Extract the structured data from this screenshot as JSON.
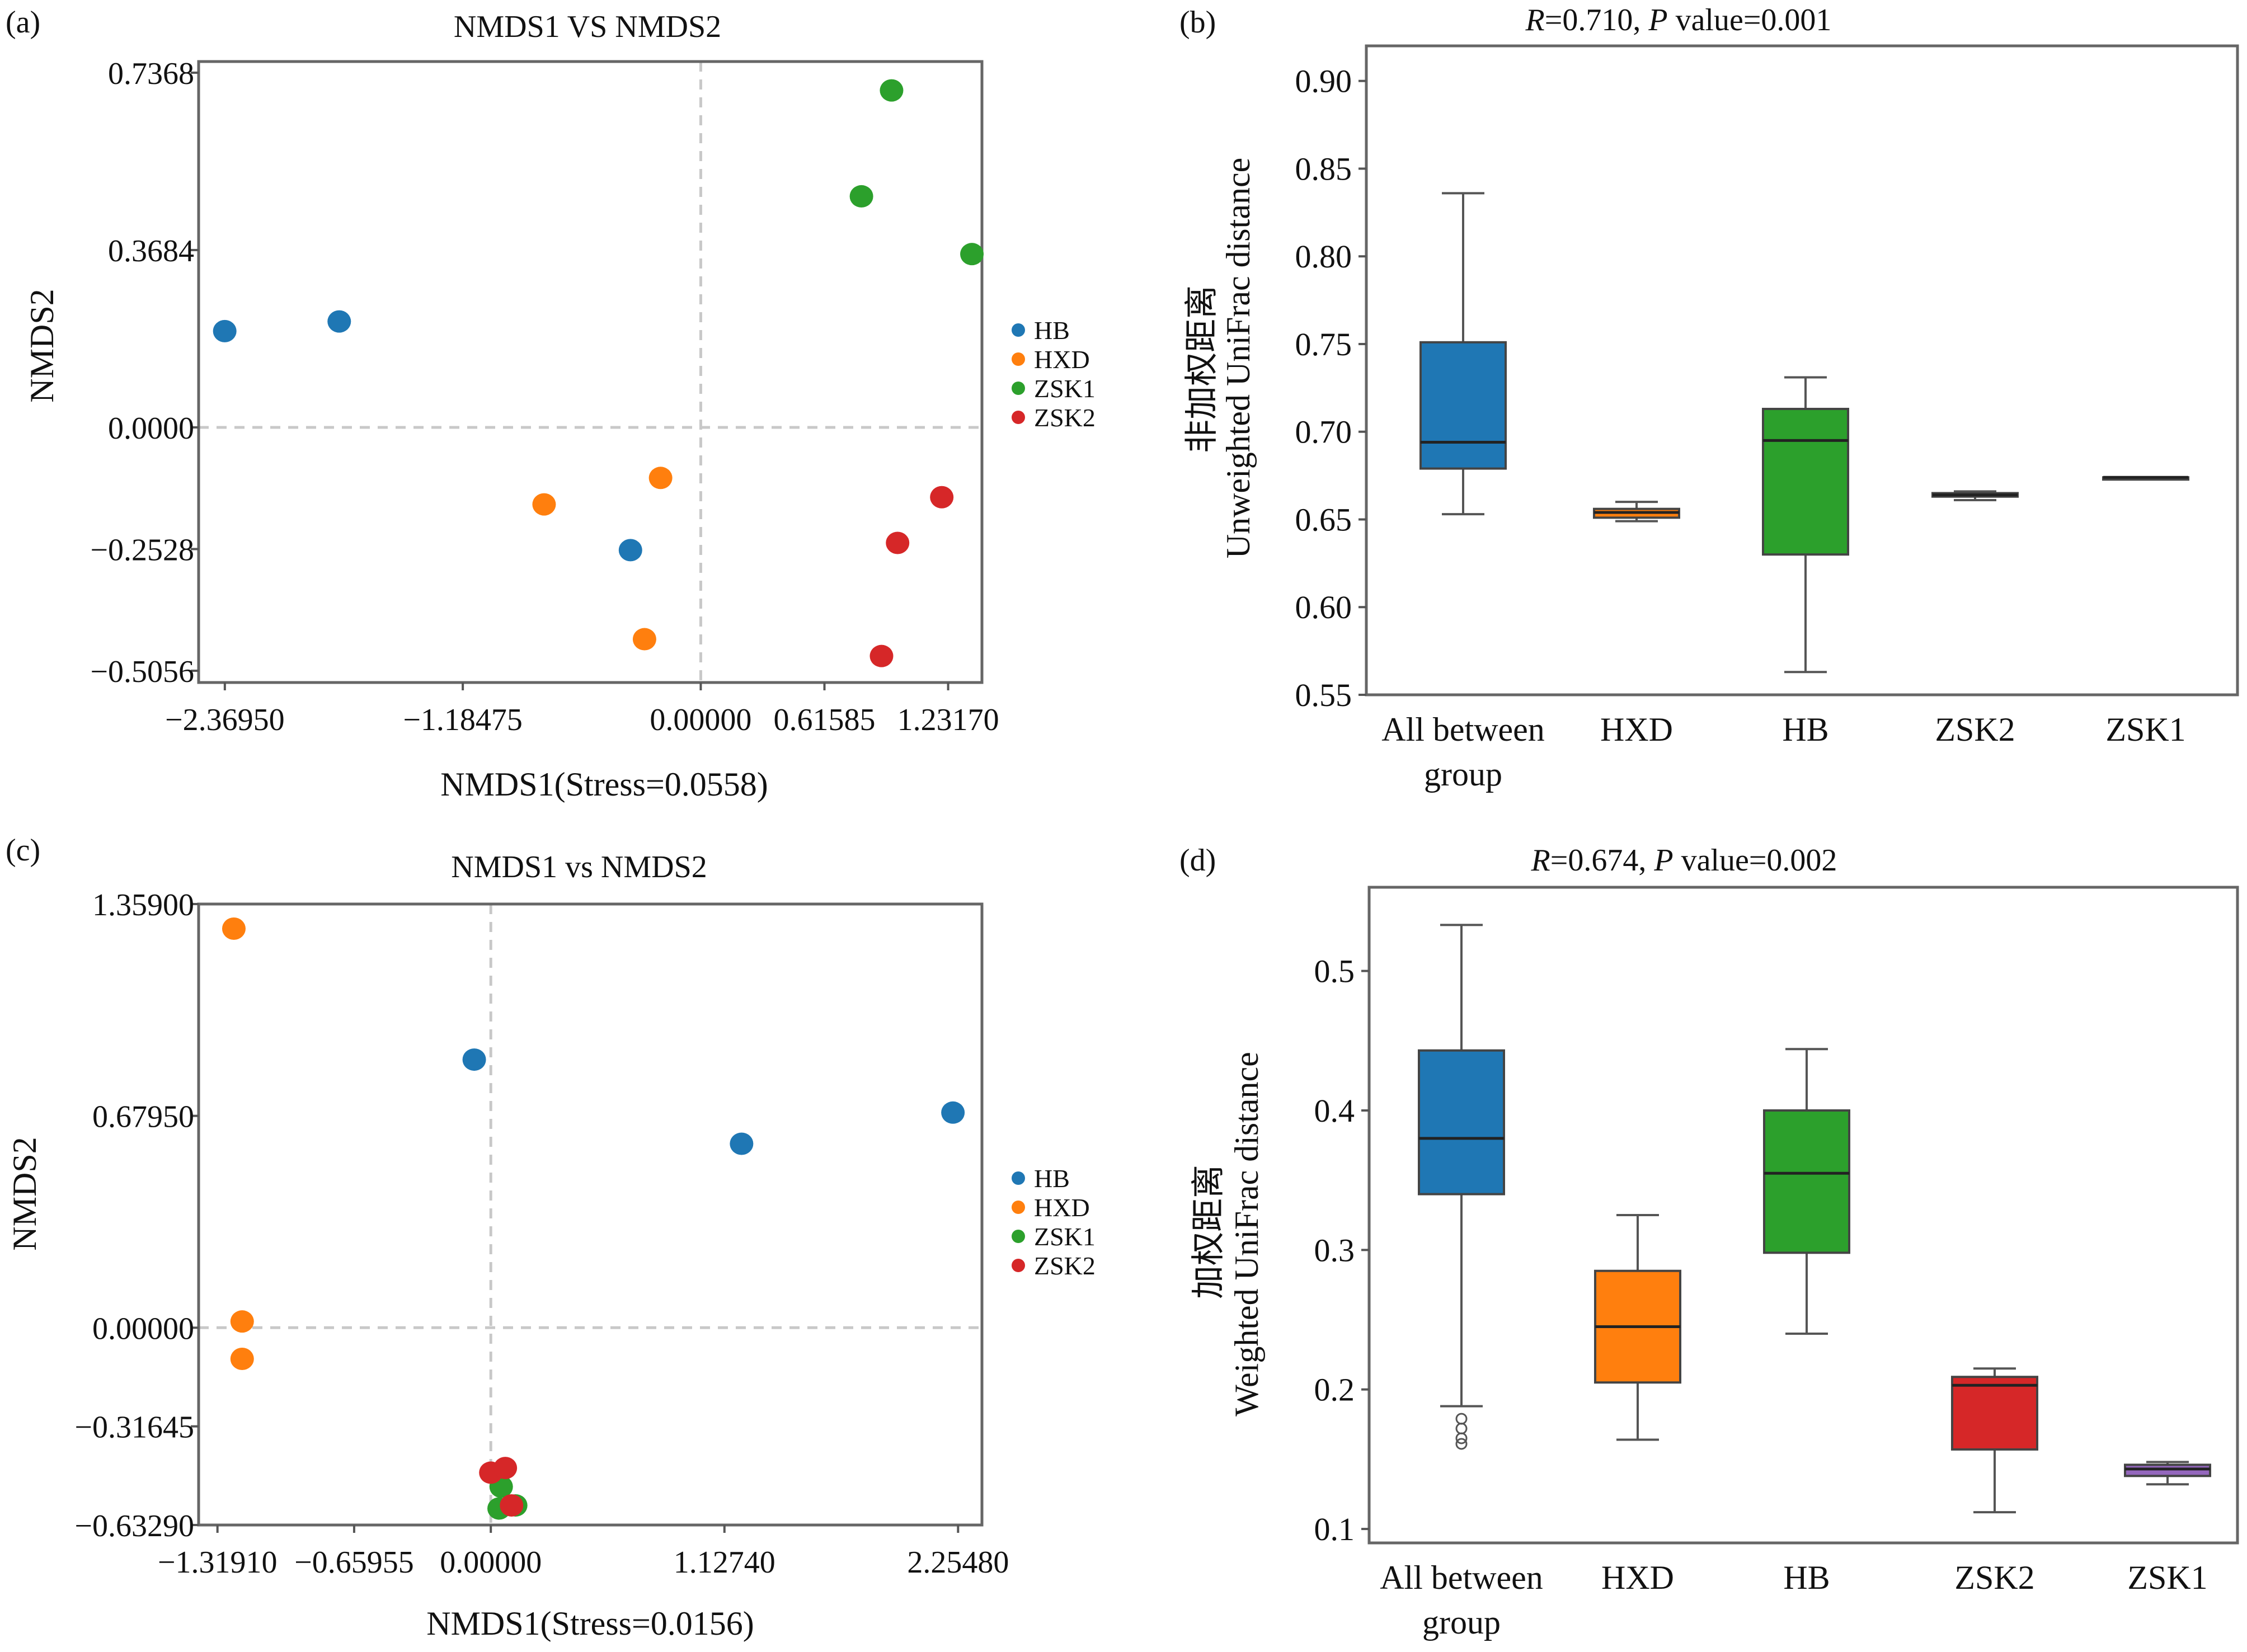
{
  "panels": {
    "a": {
      "tag": "(a)",
      "chart_data": {
        "type": "scatter",
        "title": "NMDS1 VS NMDS2",
        "xlabel": "NMDS1(Stress=0.0558)",
        "ylabel": "NMDS2",
        "xlim": [
          -2.5,
          1.4
        ],
        "ylim": [
          -0.53,
          0.76
        ],
        "xticks": [
          -2.3695,
          -1.18475,
          0.0,
          0.61585,
          1.2317
        ],
        "xtick_labels": [
          "−2.36950",
          "−1.18475",
          "0.00000",
          "0.61585",
          "1.23170"
        ],
        "yticks": [
          0.7368,
          0.3684,
          0.0,
          -0.2528,
          -0.5056
        ],
        "ytick_labels": [
          "0.7368",
          "0.3684",
          "0.0000",
          "−0.2528",
          "−0.5056"
        ],
        "legend_position": "right",
        "series": [
          {
            "name": "HB",
            "color": "#1f77b4",
            "points": [
              [
                -2.37,
                0.2
              ],
              [
                -1.8,
                0.22
              ],
              [
                -0.35,
                -0.255
              ]
            ]
          },
          {
            "name": "HXD",
            "color": "#ff7f0e",
            "points": [
              [
                -0.78,
                -0.16
              ],
              [
                -0.2,
                -0.105
              ],
              [
                -0.28,
                -0.44
              ]
            ]
          },
          {
            "name": "ZSK1",
            "color": "#2ca02c",
            "points": [
              [
                0.95,
                0.7
              ],
              [
                0.8,
                0.48
              ],
              [
                1.35,
                0.36
              ]
            ]
          },
          {
            "name": "ZSK2",
            "color": "#d62728",
            "points": [
              [
                1.2,
                -0.145
              ],
              [
                0.98,
                -0.24
              ],
              [
                0.9,
                -0.475
              ]
            ]
          }
        ]
      }
    },
    "b": {
      "tag": "(b)",
      "chart_data": {
        "type": "box",
        "title_r": "R",
        "title_r_value": "=0.710, ",
        "title_p": "P",
        "title_p_value": " value=0.001",
        "ylabel_cn": "非加权距离",
        "ylabel": "Unweighted UniFrac distance",
        "ylim": [
          0.55,
          0.92
        ],
        "yticks": [
          0.55,
          0.6,
          0.65,
          0.7,
          0.75,
          0.8,
          0.85,
          0.9
        ],
        "ytick_labels": [
          "0.55",
          "0.60",
          "0.65",
          "0.70",
          "0.75",
          "0.80",
          "0.85",
          "0.90"
        ],
        "groups": [
          {
            "label_line1": "All between",
            "label_line2": "group",
            "color": "#1f77b4",
            "min": 0.653,
            "q1": 0.679,
            "median": 0.694,
            "q3": 0.751,
            "max": 0.836
          },
          {
            "label_line1": "HXD",
            "label_line2": "",
            "color": "#ff7f0e",
            "min": 0.649,
            "q1": 0.651,
            "median": 0.654,
            "q3": 0.656,
            "max": 0.66
          },
          {
            "label_line1": "HB",
            "label_line2": "",
            "color": "#2ca02c",
            "min": 0.563,
            "q1": 0.63,
            "median": 0.695,
            "q3": 0.713,
            "max": 0.731
          },
          {
            "label_line1": "ZSK2",
            "label_line2": "",
            "color": "#d62728",
            "min": 0.661,
            "q1": 0.663,
            "median": 0.664,
            "q3": 0.665,
            "max": 0.666
          },
          {
            "label_line1": "ZSK1",
            "label_line2": "",
            "color": "#9467bd",
            "min": 0.673,
            "q1": 0.673,
            "median": 0.674,
            "q3": 0.674,
            "max": 0.674
          }
        ]
      }
    },
    "c": {
      "tag": "(c)",
      "chart_data": {
        "type": "scatter",
        "title": "NMDS1 vs NMDS2",
        "xlabel": "NMDS1(Stress=0.0156)",
        "ylabel": "NMDS2",
        "xlim": [
          -1.41,
          2.37
        ],
        "ylim": [
          -0.6329,
          1.359
        ],
        "xticks": [
          -1.3191,
          -0.65955,
          0.0,
          1.1274,
          2.2548
        ],
        "xtick_labels": [
          "−1.31910",
          "−0.65955",
          "0.00000",
          "1.12740",
          "2.25480"
        ],
        "yticks": [
          1.359,
          0.6795,
          0.0,
          -0.31645,
          -0.6329
        ],
        "ytick_labels": [
          "1.35900",
          "0.67950",
          "0.00000",
          "−0.31645",
          "−0.63290"
        ],
        "legend_position": "right",
        "series": [
          {
            "name": "HB",
            "color": "#1f77b4",
            "points": [
              [
                -0.08,
                0.86
              ],
              [
                1.21,
                0.59
              ],
              [
                2.23,
                0.69
              ]
            ]
          },
          {
            "name": "HXD",
            "color": "#ff7f0e",
            "points": [
              [
                -1.24,
                1.28
              ],
              [
                -1.2,
                0.02
              ],
              [
                -1.2,
                -0.1
              ]
            ]
          },
          {
            "name": "ZSK1",
            "color": "#2ca02c",
            "points": [
              [
                0.05,
                -0.51
              ],
              [
                0.12,
                -0.57
              ],
              [
                0.04,
                -0.58
              ]
            ]
          },
          {
            "name": "ZSK2",
            "color": "#d62728",
            "points": [
              [
                0.0,
                -0.465
              ],
              [
                0.07,
                -0.45
              ],
              [
                0.1,
                -0.57
              ]
            ]
          }
        ]
      }
    },
    "d": {
      "tag": "(d)",
      "chart_data": {
        "type": "box",
        "title_r": "R",
        "title_r_value": "=0.674, ",
        "title_p": "P",
        "title_p_value": " value=0.002",
        "ylabel_cn": "加权距离",
        "ylabel": "Weighted UniFrac distance",
        "ylim": [
          0.09,
          0.56
        ],
        "yticks": [
          0.1,
          0.2,
          0.3,
          0.4,
          0.5
        ],
        "ytick_labels": [
          "0.1",
          "0.2",
          "0.3",
          "0.4",
          "0.5"
        ],
        "groups": [
          {
            "label_line1": "All between",
            "label_line2": "group",
            "color": "#1f77b4",
            "min": 0.188,
            "q1": 0.34,
            "median": 0.38,
            "q3": 0.443,
            "max": 0.533,
            "outliers": [
              0.179,
              0.172,
              0.165,
              0.161
            ]
          },
          {
            "label_line1": "HXD",
            "label_line2": "",
            "color": "#ff7f0e",
            "min": 0.164,
            "q1": 0.205,
            "median": 0.245,
            "q3": 0.285,
            "max": 0.325
          },
          {
            "label_line1": "HB",
            "label_line2": "",
            "color": "#2ca02c",
            "min": 0.24,
            "q1": 0.298,
            "median": 0.355,
            "q3": 0.4,
            "max": 0.444
          },
          {
            "label_line1": "ZSK2",
            "label_line2": "",
            "color": "#d62728",
            "min": 0.112,
            "q1": 0.157,
            "median": 0.203,
            "q3": 0.209,
            "max": 0.215
          },
          {
            "label_line1": "ZSK1",
            "label_line2": "",
            "color": "#9467bd",
            "min": 0.132,
            "q1": 0.138,
            "median": 0.143,
            "q3": 0.146,
            "max": 0.148
          }
        ]
      }
    }
  }
}
